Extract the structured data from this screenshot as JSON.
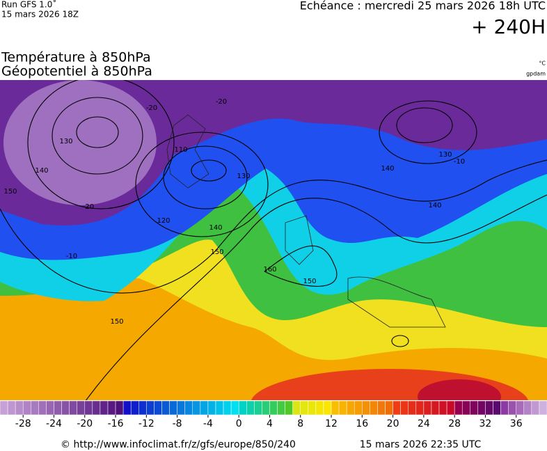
{
  "header": {
    "run": "Run GFS 1.0˚",
    "run_date": "15 mars 2026 18Z",
    "valid": "Echéance : mercredi 25 mars 2026 18h UTC",
    "lead": "+ 240H",
    "title_1": "Température à 850hPa",
    "title_2": "Géopotentiel à 850hPa",
    "unit_temp": "°C",
    "unit_geo": "gpdam"
  },
  "map": {
    "contour_labels": [
      "-20",
      "-20",
      "130",
      "140",
      "150",
      "-20",
      "110",
      "120",
      "130",
      "140",
      "150",
      "160",
      "150",
      "-10",
      "150",
      "140",
      "130",
      "-10",
      "140"
    ]
  },
  "colorbar": {
    "range": [
      -31,
      40
    ],
    "ticks": [
      -28,
      -24,
      -20,
      -16,
      -12,
      -8,
      -4,
      0,
      4,
      8,
      12,
      16,
      20,
      24,
      28,
      32,
      36
    ]
  },
  "footer": {
    "source": "© http://www.infoclimat.fr/z/gfs/europe/850/240",
    "timestamp": "15 mars 2026 22:35 UTC"
  }
}
